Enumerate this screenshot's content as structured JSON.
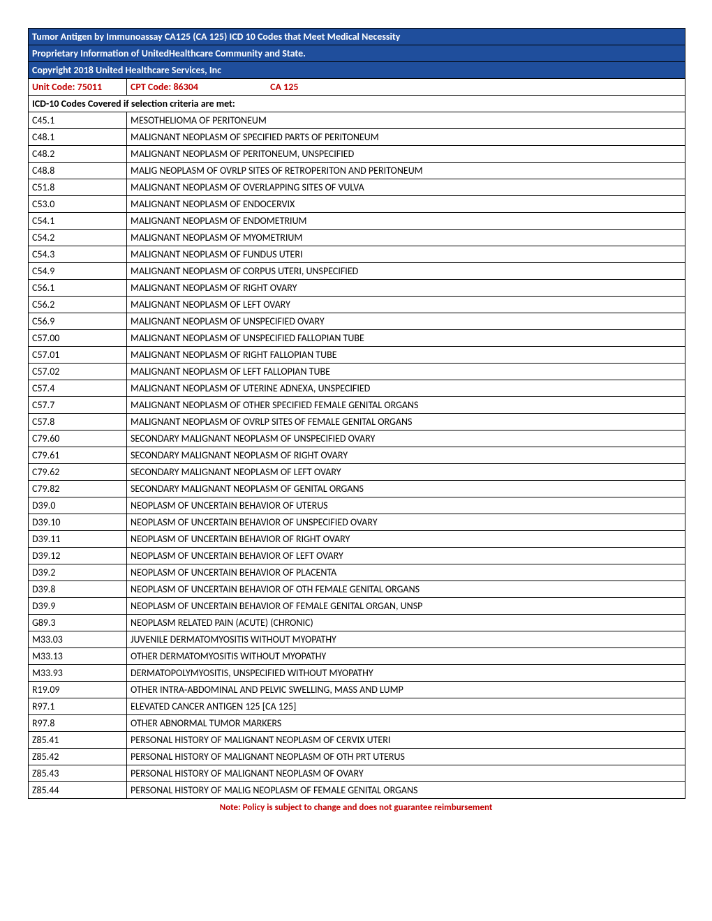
{
  "header": {
    "line1": "Tumor Antigen by Immunoassay CA125 (CA 125) ICD 10 Codes that Meet Medical Necessity",
    "line2": "Proprietary Information of UnitedHealthcare Community and State.",
    "line3": "Copyright 2018 United Healthcare Services, Inc"
  },
  "codes": {
    "unit_code_label": "Unit Code: 75011",
    "cpt_code_label": "CPT Code: 86304",
    "ca125_label": "CA 125"
  },
  "section_title": "ICD-10 Codes Covered if selection criteria are met:",
  "rows": [
    {
      "code": "C45.1",
      "desc": "MESOTHELIOMA OF PERITONEUM"
    },
    {
      "code": "C48.1",
      "desc": "MALIGNANT NEOPLASM OF SPECIFIED PARTS OF PERITONEUM"
    },
    {
      "code": "C48.2",
      "desc": "MALIGNANT NEOPLASM OF PERITONEUM, UNSPECIFIED"
    },
    {
      "code": "C48.8",
      "desc": "MALIG NEOPLASM OF OVRLP SITES OF RETROPERITON AND PERITONEUM"
    },
    {
      "code": "C51.8",
      "desc": "MALIGNANT NEOPLASM OF OVERLAPPING SITES OF VULVA"
    },
    {
      "code": "C53.0",
      "desc": "MALIGNANT NEOPLASM OF ENDOCERVIX"
    },
    {
      "code": "C54.1",
      "desc": "MALIGNANT NEOPLASM OF ENDOMETRIUM"
    },
    {
      "code": "C54.2",
      "desc": "MALIGNANT NEOPLASM OF MYOMETRIUM"
    },
    {
      "code": "C54.3",
      "desc": "MALIGNANT NEOPLASM OF FUNDUS UTERI"
    },
    {
      "code": "C54.9",
      "desc": "MALIGNANT NEOPLASM OF CORPUS UTERI, UNSPECIFIED"
    },
    {
      "code": "C56.1",
      "desc": "MALIGNANT NEOPLASM OF RIGHT OVARY"
    },
    {
      "code": "C56.2",
      "desc": "MALIGNANT NEOPLASM OF LEFT OVARY"
    },
    {
      "code": "C56.9",
      "desc": "MALIGNANT NEOPLASM OF UNSPECIFIED OVARY"
    },
    {
      "code": "C57.00",
      "desc": "MALIGNANT NEOPLASM OF UNSPECIFIED FALLOPIAN TUBE"
    },
    {
      "code": "C57.01",
      "desc": "MALIGNANT NEOPLASM OF RIGHT FALLOPIAN TUBE"
    },
    {
      "code": "C57.02",
      "desc": "MALIGNANT NEOPLASM OF LEFT FALLOPIAN TUBE"
    },
    {
      "code": "C57.4",
      "desc": "MALIGNANT NEOPLASM OF UTERINE ADNEXA, UNSPECIFIED"
    },
    {
      "code": "C57.7",
      "desc": "MALIGNANT NEOPLASM OF OTHER SPECIFIED FEMALE GENITAL ORGANS"
    },
    {
      "code": "C57.8",
      "desc": "MALIGNANT NEOPLASM OF OVRLP SITES OF FEMALE GENITAL ORGANS"
    },
    {
      "code": "C79.60",
      "desc": "SECONDARY MALIGNANT NEOPLASM OF UNSPECIFIED OVARY"
    },
    {
      "code": "C79.61",
      "desc": "SECONDARY MALIGNANT NEOPLASM OF RIGHT OVARY"
    },
    {
      "code": "C79.62",
      "desc": "SECONDARY MALIGNANT NEOPLASM OF LEFT OVARY"
    },
    {
      "code": "C79.82",
      "desc": "SECONDARY MALIGNANT NEOPLASM OF GENITAL ORGANS"
    },
    {
      "code": "D39.0",
      "desc": "NEOPLASM OF UNCERTAIN BEHAVIOR OF UTERUS"
    },
    {
      "code": "D39.10",
      "desc": "NEOPLASM OF UNCERTAIN BEHAVIOR OF UNSPECIFIED OVARY"
    },
    {
      "code": "D39.11",
      "desc": "NEOPLASM OF UNCERTAIN BEHAVIOR OF RIGHT OVARY"
    },
    {
      "code": "D39.12",
      "desc": "NEOPLASM OF UNCERTAIN BEHAVIOR OF LEFT OVARY"
    },
    {
      "code": "D39.2",
      "desc": "NEOPLASM OF UNCERTAIN BEHAVIOR OF PLACENTA"
    },
    {
      "code": "D39.8",
      "desc": "NEOPLASM OF UNCERTAIN BEHAVIOR OF OTH FEMALE GENITAL ORGANS"
    },
    {
      "code": "D39.9",
      "desc": "NEOPLASM OF UNCERTAIN BEHAVIOR OF FEMALE GENITAL ORGAN, UNSP"
    },
    {
      "code": "G89.3",
      "desc": "NEOPLASM RELATED PAIN (ACUTE) (CHRONIC)"
    },
    {
      "code": "M33.03",
      "desc": "JUVENILE DERMATOMYOSITIS WITHOUT MYOPATHY"
    },
    {
      "code": "M33.13",
      "desc": "OTHER DERMATOMYOSITIS WITHOUT MYOPATHY"
    },
    {
      "code": "M33.93",
      "desc": "DERMATOPOLYMYOSITIS, UNSPECIFIED WITHOUT MYOPATHY"
    },
    {
      "code": "R19.09",
      "desc": "OTHER INTRA-ABDOMINAL AND PELVIC SWELLING, MASS AND LUMP"
    },
    {
      "code": "R97.1",
      "desc": "ELEVATED CANCER ANTIGEN 125 [CA 125]"
    },
    {
      "code": "R97.8",
      "desc": "OTHER ABNORMAL TUMOR MARKERS"
    },
    {
      "code": "Z85.41",
      "desc": "PERSONAL HISTORY OF MALIGNANT NEOPLASM OF CERVIX UTERI"
    },
    {
      "code": "Z85.42",
      "desc": "PERSONAL HISTORY OF MALIGNANT NEOPLASM OF OTH PRT UTERUS"
    },
    {
      "code": "Z85.43",
      "desc": "PERSONAL HISTORY OF MALIGNANT NEOPLASM OF OVARY"
    },
    {
      "code": "Z85.44",
      "desc": "PERSONAL HISTORY OF MALIG NEOPLASM OF FEMALE GENITAL ORGANS"
    }
  ],
  "footer_note": "Note: Policy is subject to change and does not guarantee reimbursement",
  "colors": {
    "header_bg": "#1f4e9c",
    "header_text": "#ffffff",
    "red_text": "#c00000",
    "border": "#000000",
    "body_bg": "#ffffff"
  }
}
